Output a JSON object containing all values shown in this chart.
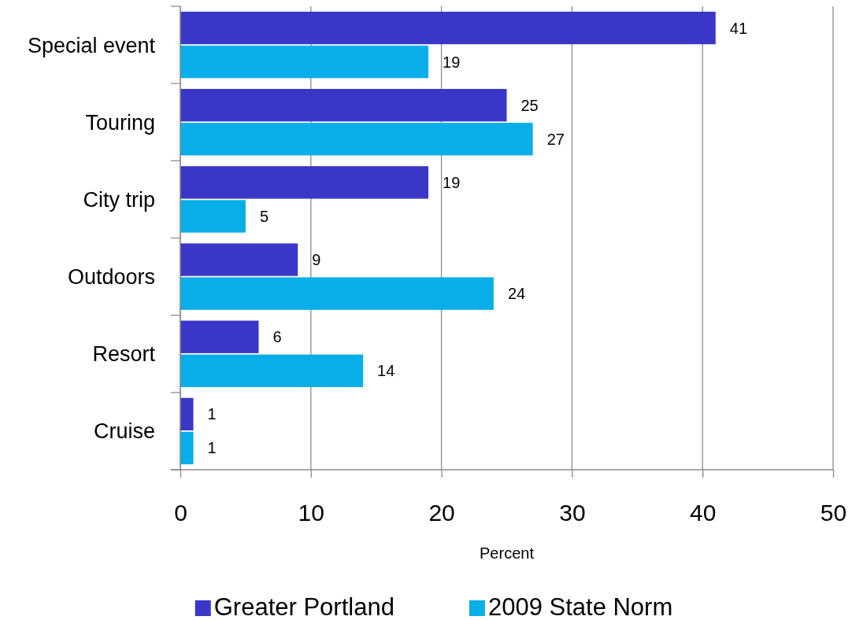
{
  "chart_data": {
    "type": "bar",
    "orientation": "horizontal",
    "xlabel": "Percent",
    "categories": [
      "Special event",
      "Touring",
      "City trip",
      "Outdoors",
      "Resort",
      "Cruise"
    ],
    "series": [
      {
        "name": "Greater Portland",
        "color": "#3a37c8",
        "values": [
          41,
          25,
          19,
          9,
          6,
          1
        ]
      },
      {
        "name": "2009 State Norm",
        "color": "#08aee8",
        "values": [
          19,
          27,
          5,
          24,
          14,
          1
        ]
      }
    ],
    "xlim": [
      0,
      50
    ],
    "xticks": [
      0,
      10,
      20,
      30,
      40,
      50
    ],
    "grid": "x",
    "legend": "bottom",
    "data_labels": true
  }
}
